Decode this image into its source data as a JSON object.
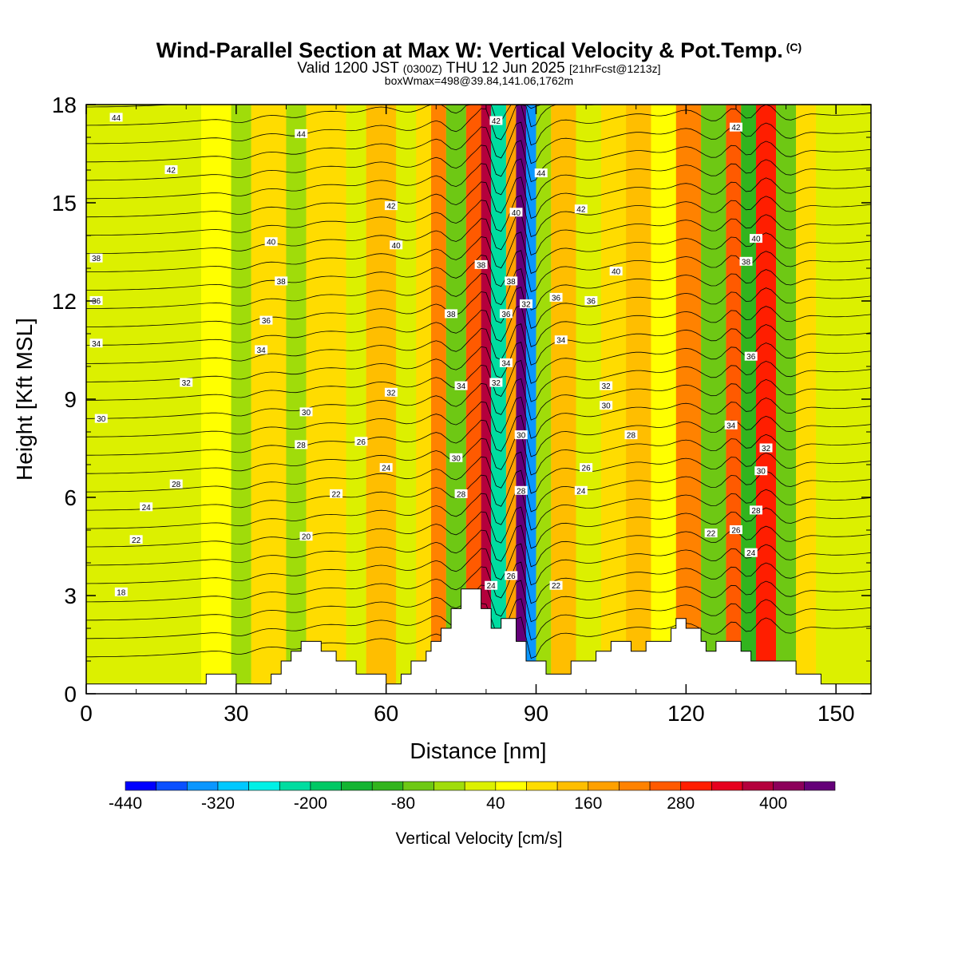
{
  "title": {
    "main": "Wind-Parallel Section at Max W: Vertical Velocity & Pot.Temp.",
    "copyright": "(C)",
    "valid_prefix": "Valid 1200 JST",
    "valid_utc": "(0300Z)",
    "valid_date": "THU 12 Jun 2025",
    "forecast": "[21hrFcst@1213z]",
    "box_info": "boxWmax=498@39.84,141.06,1762m"
  },
  "chart_data": {
    "type": "heatmap",
    "xlabel": "Distance [nm]",
    "ylabel": "Height [Kft MSL]",
    "xlim": [
      0,
      157
    ],
    "ylim": [
      0,
      18
    ],
    "x_ticks": [
      "0",
      "30",
      "60",
      "90",
      "120",
      "150"
    ],
    "y_ticks": [
      "0",
      "3",
      "6",
      "9",
      "12",
      "15",
      "18"
    ],
    "colorbar": {
      "label": "Vertical Velocity [cm/s]",
      "tick_labels": [
        "-440",
        "-320",
        "-200",
        "-80",
        "40",
        "160",
        "280",
        "400"
      ],
      "colors": [
        "#0000ff",
        "#0a50ff",
        "#0a96ff",
        "#00c8ff",
        "#00f0e6",
        "#00dca0",
        "#00c864",
        "#14b432",
        "#32b41e",
        "#6ec814",
        "#a0dc0a",
        "#dcf000",
        "#ffff00",
        "#ffdc00",
        "#ffbe00",
        "#ffa000",
        "#ff8200",
        "#ff5a00",
        "#ff1e00",
        "#e6001e",
        "#b4003c",
        "#8c005a",
        "#640078"
      ]
    },
    "velocity_bands": [
      {
        "x0": 0,
        "x1": 23,
        "cm_s": -60
      },
      {
        "x0": 23,
        "x1": 29,
        "cm_s": 10
      },
      {
        "x0": 29,
        "x1": 33,
        "cm_s": -90
      },
      {
        "x0": 33,
        "x1": 40,
        "cm_s": 20
      },
      {
        "x0": 40,
        "x1": 44,
        "cm_s": -70
      },
      {
        "x0": 44,
        "x1": 52,
        "cm_s": 40
      },
      {
        "x0": 52,
        "x1": 56,
        "cm_s": -40
      },
      {
        "x0": 56,
        "x1": 62,
        "cm_s": 80
      },
      {
        "x0": 62,
        "x1": 66,
        "cm_s": -60
      },
      {
        "x0": 66,
        "x1": 69,
        "cm_s": 20
      },
      {
        "x0": 69,
        "x1": 72,
        "cm_s": 140
      },
      {
        "x0": 72,
        "x1": 76,
        "cm_s": -120
      },
      {
        "x0": 76,
        "x1": 79,
        "cm_s": 180
      },
      {
        "x0": 79,
        "x1": 81,
        "cm_s": 320
      },
      {
        "x0": 81,
        "x1": 84,
        "cm_s": -300
      },
      {
        "x0": 84,
        "x1": 86,
        "cm_s": 120
      },
      {
        "x0": 86,
        "x1": 88,
        "cm_s": 420
      },
      {
        "x0": 88,
        "x1": 90,
        "cm_s": -420
      },
      {
        "x0": 90,
        "x1": 93,
        "cm_s": -100
      },
      {
        "x0": 93,
        "x1": 98,
        "cm_s": 60
      },
      {
        "x0": 98,
        "x1": 103,
        "cm_s": -50
      },
      {
        "x0": 103,
        "x1": 108,
        "cm_s": 30
      },
      {
        "x0": 108,
        "x1": 113,
        "cm_s": 90
      },
      {
        "x0": 113,
        "x1": 118,
        "cm_s": 0
      },
      {
        "x0": 118,
        "x1": 123,
        "cm_s": 150
      },
      {
        "x0": 123,
        "x1": 128,
        "cm_s": -120
      },
      {
        "x0": 128,
        "x1": 131,
        "cm_s": 200
      },
      {
        "x0": 131,
        "x1": 134,
        "cm_s": -160
      },
      {
        "x0": 134,
        "x1": 138,
        "cm_s": 220
      },
      {
        "x0": 138,
        "x1": 142,
        "cm_s": -140
      },
      {
        "x0": 142,
        "x1": 146,
        "cm_s": 30
      },
      {
        "x0": 146,
        "x1": 157,
        "cm_s": -60
      }
    ],
    "terrain": [
      [
        0,
        0.3
      ],
      [
        24,
        0.3
      ],
      [
        24,
        0.6
      ],
      [
        30,
        0.6
      ],
      [
        30,
        0.3
      ],
      [
        37,
        0.3
      ],
      [
        37,
        0.6
      ],
      [
        39,
        0.6
      ],
      [
        39,
        1.0
      ],
      [
        41,
        1.0
      ],
      [
        41,
        1.3
      ],
      [
        43,
        1.3
      ],
      [
        43,
        1.6
      ],
      [
        47,
        1.6
      ],
      [
        47,
        1.3
      ],
      [
        50,
        1.3
      ],
      [
        50,
        1.0
      ],
      [
        54,
        1.0
      ],
      [
        54,
        0.6
      ],
      [
        60,
        0.6
      ],
      [
        60,
        0.3
      ],
      [
        63,
        0.3
      ],
      [
        63,
        0.6
      ],
      [
        65,
        0.6
      ],
      [
        65,
        1.0
      ],
      [
        68,
        1.0
      ],
      [
        68,
        1.3
      ],
      [
        69,
        1.3
      ],
      [
        69,
        1.6
      ],
      [
        71,
        1.6
      ],
      [
        71,
        2.0
      ],
      [
        73,
        2.0
      ],
      [
        73,
        2.6
      ],
      [
        75,
        2.6
      ],
      [
        75,
        3.2
      ],
      [
        79,
        3.2
      ],
      [
        79,
        2.6
      ],
      [
        81,
        2.6
      ],
      [
        81,
        2.0
      ],
      [
        83,
        2.0
      ],
      [
        83,
        2.3
      ],
      [
        86,
        2.3
      ],
      [
        86,
        1.6
      ],
      [
        88,
        1.6
      ],
      [
        88,
        1.0
      ],
      [
        92,
        1.0
      ],
      [
        92,
        0.6
      ],
      [
        97,
        0.6
      ],
      [
        97,
        1.0
      ],
      [
        102,
        1.0
      ],
      [
        102,
        1.3
      ],
      [
        105,
        1.3
      ],
      [
        105,
        1.6
      ],
      [
        109,
        1.6
      ],
      [
        109,
        1.3
      ],
      [
        112,
        1.3
      ],
      [
        112,
        1.6
      ],
      [
        117,
        1.6
      ],
      [
        117,
        2.0
      ],
      [
        118,
        2.0
      ],
      [
        118,
        2.3
      ],
      [
        120,
        2.3
      ],
      [
        120,
        2.0
      ],
      [
        123,
        2.0
      ],
      [
        123,
        1.6
      ],
      [
        124,
        1.6
      ],
      [
        124,
        1.3
      ],
      [
        126,
        1.3
      ],
      [
        126,
        1.6
      ],
      [
        131,
        1.6
      ],
      [
        131,
        1.3
      ],
      [
        133,
        1.3
      ],
      [
        133,
        1.0
      ],
      [
        142,
        1.0
      ],
      [
        142,
        0.6
      ],
      [
        147,
        0.6
      ],
      [
        147,
        0.3
      ],
      [
        157,
        0.3
      ]
    ],
    "isentrope_labels": [
      {
        "x": 6,
        "y": 17.6,
        "text": "44"
      },
      {
        "x": 17,
        "y": 16.0,
        "text": "42"
      },
      {
        "x": 43,
        "y": 17.1,
        "text": "44"
      },
      {
        "x": 61,
        "y": 14.9,
        "text": "42"
      },
      {
        "x": 37,
        "y": 13.8,
        "text": "40"
      },
      {
        "x": 62,
        "y": 13.7,
        "text": "40"
      },
      {
        "x": 2,
        "y": 13.3,
        "text": "38"
      },
      {
        "x": 39,
        "y": 12.6,
        "text": "38"
      },
      {
        "x": 2,
        "y": 12.0,
        "text": "36"
      },
      {
        "x": 36,
        "y": 11.4,
        "text": "36"
      },
      {
        "x": 2,
        "y": 10.7,
        "text": "34"
      },
      {
        "x": 35,
        "y": 10.5,
        "text": "34"
      },
      {
        "x": 20,
        "y": 9.5,
        "text": "32"
      },
      {
        "x": 61,
        "y": 9.2,
        "text": "32"
      },
      {
        "x": 3,
        "y": 8.4,
        "text": "30"
      },
      {
        "x": 44,
        "y": 8.6,
        "text": "30"
      },
      {
        "x": 43,
        "y": 7.6,
        "text": "28"
      },
      {
        "x": 55,
        "y": 7.7,
        "text": "26"
      },
      {
        "x": 18,
        "y": 6.4,
        "text": "28"
      },
      {
        "x": 60,
        "y": 6.9,
        "text": "24"
      },
      {
        "x": 50,
        "y": 6.1,
        "text": "22"
      },
      {
        "x": 12,
        "y": 5.7,
        "text": "24"
      },
      {
        "x": 10,
        "y": 4.7,
        "text": "22"
      },
      {
        "x": 44,
        "y": 4.8,
        "text": "20"
      },
      {
        "x": 7,
        "y": 3.1,
        "text": "18"
      },
      {
        "x": 82,
        "y": 17.5,
        "text": "42"
      },
      {
        "x": 91,
        "y": 15.9,
        "text": "44"
      },
      {
        "x": 86,
        "y": 14.7,
        "text": "40"
      },
      {
        "x": 79,
        "y": 13.1,
        "text": "38"
      },
      {
        "x": 85,
        "y": 12.6,
        "text": "38"
      },
      {
        "x": 88,
        "y": 11.9,
        "text": "32"
      },
      {
        "x": 84,
        "y": 11.6,
        "text": "36"
      },
      {
        "x": 94,
        "y": 12.1,
        "text": "36"
      },
      {
        "x": 95,
        "y": 10.8,
        "text": "34"
      },
      {
        "x": 73,
        "y": 11.6,
        "text": "38"
      },
      {
        "x": 84,
        "y": 10.1,
        "text": "34"
      },
      {
        "x": 82,
        "y": 9.5,
        "text": "32"
      },
      {
        "x": 75,
        "y": 9.4,
        "text": "34"
      },
      {
        "x": 87,
        "y": 7.9,
        "text": "30"
      },
      {
        "x": 74,
        "y": 7.2,
        "text": "30"
      },
      {
        "x": 87,
        "y": 6.2,
        "text": "28"
      },
      {
        "x": 75,
        "y": 6.1,
        "text": "28"
      },
      {
        "x": 85,
        "y": 3.6,
        "text": "26"
      },
      {
        "x": 81,
        "y": 3.3,
        "text": "24"
      },
      {
        "x": 94,
        "y": 3.3,
        "text": "22"
      },
      {
        "x": 99,
        "y": 14.8,
        "text": "42"
      },
      {
        "x": 106,
        "y": 12.9,
        "text": "40"
      },
      {
        "x": 101,
        "y": 12.0,
        "text": "36"
      },
      {
        "x": 104,
        "y": 9.4,
        "text": "32"
      },
      {
        "x": 104,
        "y": 8.8,
        "text": "30"
      },
      {
        "x": 109,
        "y": 7.9,
        "text": "28"
      },
      {
        "x": 100,
        "y": 6.9,
        "text": "26"
      },
      {
        "x": 99,
        "y": 6.2,
        "text": "24"
      },
      {
        "x": 130,
        "y": 17.3,
        "text": "42"
      },
      {
        "x": 134,
        "y": 13.9,
        "text": "40"
      },
      {
        "x": 132,
        "y": 13.2,
        "text": "38"
      },
      {
        "x": 133,
        "y": 10.3,
        "text": "36"
      },
      {
        "x": 129,
        "y": 8.2,
        "text": "34"
      },
      {
        "x": 136,
        "y": 7.5,
        "text": "32"
      },
      {
        "x": 135,
        "y": 6.8,
        "text": "30"
      },
      {
        "x": 134,
        "y": 5.6,
        "text": "28"
      },
      {
        "x": 130,
        "y": 5.0,
        "text": "26"
      },
      {
        "x": 125,
        "y": 4.9,
        "text": "22"
      },
      {
        "x": 133,
        "y": 4.3,
        "text": "24"
      }
    ]
  }
}
